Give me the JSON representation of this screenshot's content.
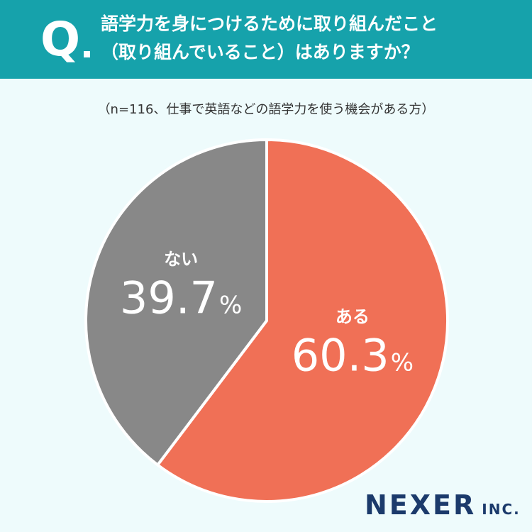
{
  "header": {
    "q_label": "Q",
    "question_line1": "語学力を身につけるために取り組んだこと",
    "question_line2": "（取り組んでいること）はありますか？"
  },
  "note": "（n=116、仕事で英語などの語学力を使う機会がある方）",
  "chart_data": {
    "type": "pie",
    "labels": [
      "ある",
      "ない"
    ],
    "values": [
      60.3,
      39.7
    ],
    "unit": "%",
    "colors": [
      "#f07056",
      "#888888"
    ]
  },
  "brand": {
    "name": "NEXER",
    "suffix": "INC."
  }
}
